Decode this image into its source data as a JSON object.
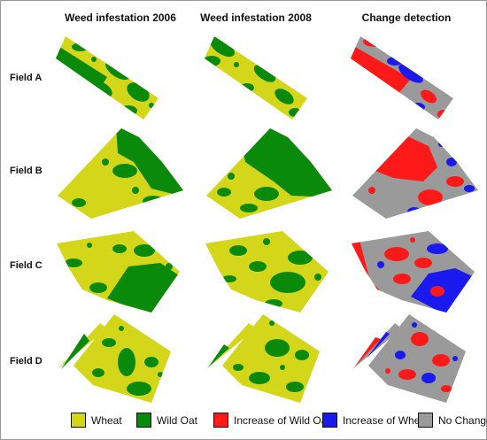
{
  "columns": [
    "Weed infestation 2006",
    "Weed infestation 2008",
    "Change detection"
  ],
  "rows": [
    "Field A",
    "Field B",
    "Field C",
    "Field D"
  ],
  "legend": [
    {
      "label": "Wheat",
      "color": "#d4d61a"
    },
    {
      "label": "Wild Oat",
      "color": "#0a8a0a"
    },
    {
      "label": "Increase of Wild Oat",
      "color": "#ff1a1a"
    },
    {
      "label": "Increase of Wheat",
      "color": "#1a1aee"
    },
    {
      "label": "No Change",
      "color": "#9a9a9a"
    }
  ]
}
